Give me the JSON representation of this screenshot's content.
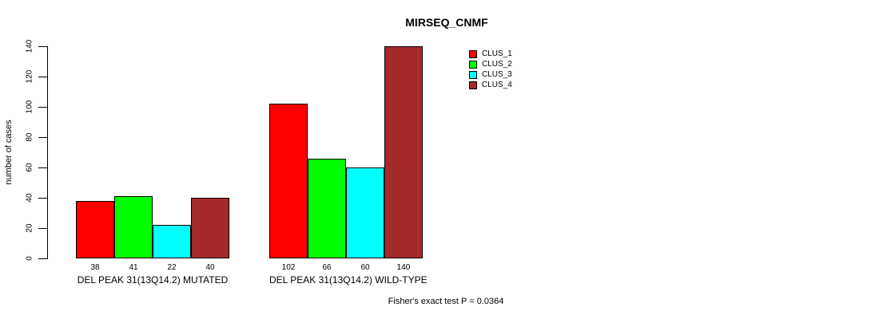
{
  "title": "MIRSEQ_CNMF",
  "footnote": "Fisher's exact test P = 0.0364",
  "chart_data": {
    "type": "bar",
    "title": "MIRSEQ_CNMF",
    "xlabel": "",
    "ylabel": "number of cases",
    "ylim": [
      0,
      140
    ],
    "yticks": [
      0,
      20,
      40,
      60,
      80,
      100,
      120,
      140
    ],
    "grid": false,
    "legend_position": "top-right",
    "series": [
      {
        "name": "CLUS_1",
        "color": "#FF0000",
        "values": [
          38,
          102
        ]
      },
      {
        "name": "CLUS_2",
        "color": "#00FF00",
        "values": [
          41,
          66
        ]
      },
      {
        "name": "CLUS_3",
        "color": "#00FFFF",
        "values": [
          22,
          60
        ]
      },
      {
        "name": "CLUS_4",
        "color": "#A52A2A",
        "values": [
          40,
          140
        ]
      }
    ],
    "groups": [
      {
        "label": "DEL PEAK 31(13Q14.2) MUTATED",
        "values": [
          38,
          41,
          22,
          40
        ]
      },
      {
        "label": "DEL PEAK 31(13Q14.2) WILD-TYPE",
        "values": [
          102,
          66,
          60,
          140
        ]
      }
    ],
    "bar_value_labels": [
      [
        "38",
        "41",
        "22",
        "40"
      ],
      [
        "102",
        "66",
        "60",
        "140"
      ]
    ],
    "annotation": "Fisher's exact test P = 0.0364"
  }
}
